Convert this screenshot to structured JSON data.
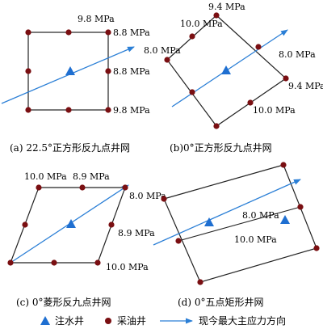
{
  "colors": {
    "injection_well": "#1f6fd1",
    "production_well": "#7a0f12",
    "stress_arrow": "#2b7fd6",
    "pattern_line": "#222222"
  },
  "panels": {
    "a": {
      "caption": "(a) 22.5°正方形反九点井网",
      "labels": [
        "9.8 MPa",
        "8.8 MPa",
        "8.8 MPa",
        "9.8 MPa"
      ]
    },
    "b": {
      "caption": "(b)0°正方形反九点井网",
      "labels": [
        "9.4 MPa",
        "10.0 MPa",
        "8.0 MPa",
        "8.0 MPa",
        "9.4 MPa",
        "10.0 MPa"
      ]
    },
    "c": {
      "caption": "(c) 0°菱形反九点井网",
      "labels": [
        "10.0 MPa",
        "8.9 MPa",
        "8.0 MPa",
        "8.9 MPa",
        "10.0 MPa"
      ]
    },
    "d": {
      "caption": "(d) 0°五点矩形井网",
      "labels": [
        "8.0 MPa",
        "10.0 MPa"
      ]
    }
  },
  "legend": {
    "injection_label": "注水井",
    "production_label": "采油井",
    "stress_label": "现今最大主应力方向",
    "injection_icon": "blue-triangle-icon",
    "production_icon": "dark-red-dot-icon",
    "stress_icon": "blue-arrow-icon"
  }
}
